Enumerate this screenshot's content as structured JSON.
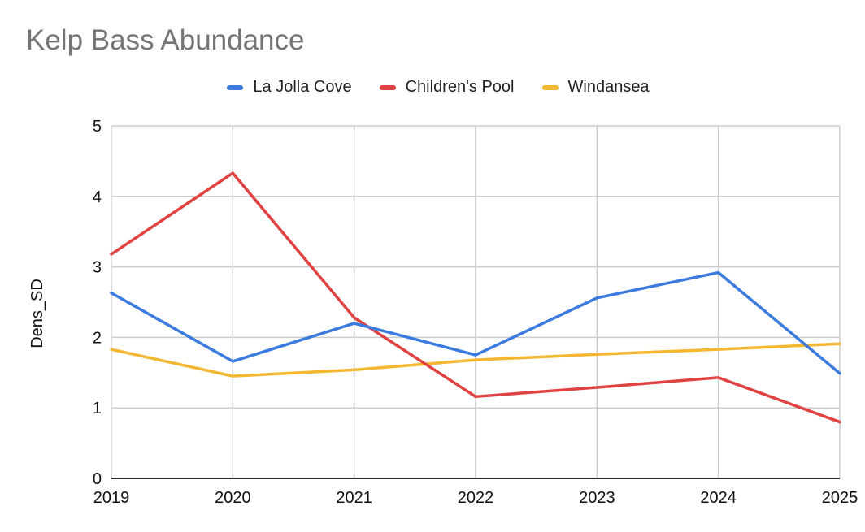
{
  "chart_data": {
    "type": "line",
    "title": "Kelp Bass Abundance",
    "xlabel": "",
    "ylabel": "Dens_SD",
    "x": [
      "2019",
      "2020",
      "2021",
      "2022",
      "2023",
      "2024",
      "2025"
    ],
    "ylim": [
      0,
      5
    ],
    "yticks": [
      "0",
      "1",
      "2",
      "3",
      "4",
      "5"
    ],
    "grid": true,
    "legend_position": "top",
    "series": [
      {
        "name": "La Jolla Cove",
        "color": "#3b7be0",
        "values": [
          2.63,
          1.66,
          2.2,
          1.75,
          2.56,
          2.92,
          1.49
        ]
      },
      {
        "name": "Children's Pool",
        "color": "#e04141",
        "values": [
          3.18,
          4.33,
          2.28,
          1.16,
          1.29,
          1.43,
          0.8
        ]
      },
      {
        "name": "Windansea",
        "color": "#f4b731",
        "values": [
          1.83,
          1.45,
          1.54,
          1.68,
          1.76,
          1.83,
          1.91
        ]
      }
    ]
  }
}
